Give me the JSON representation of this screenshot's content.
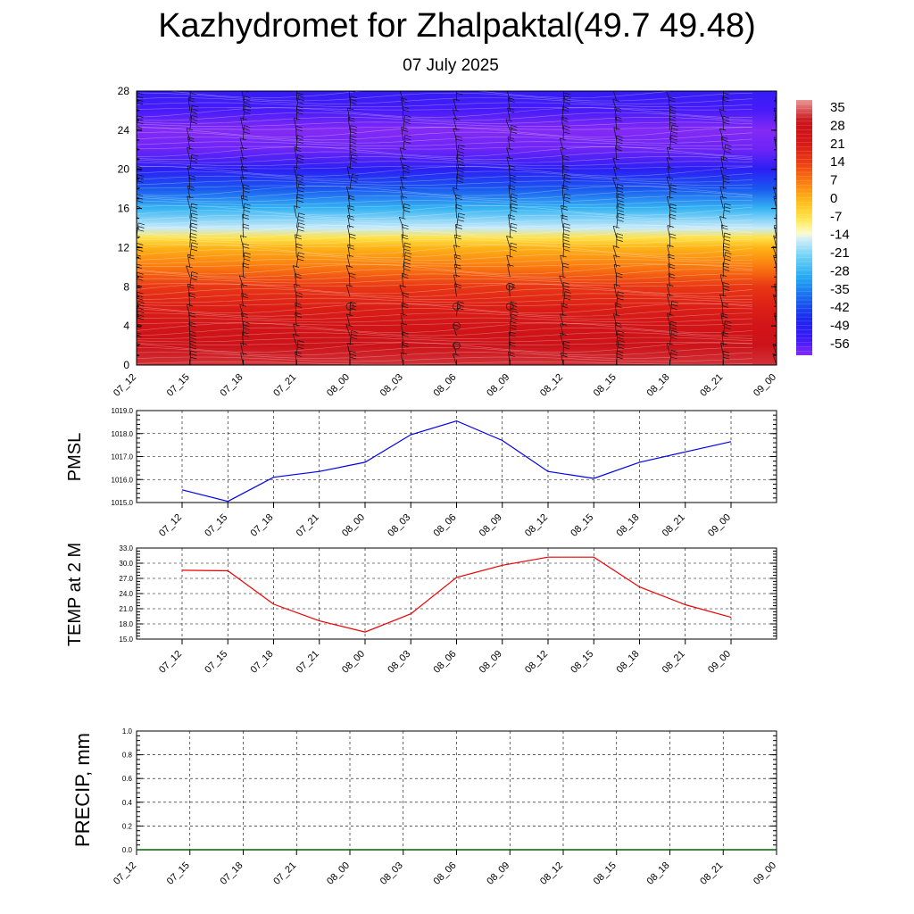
{
  "header": {
    "title": "Kazhydromet for Zhalpaktal(49.7 49.48)",
    "date": "07 July 2025"
  },
  "colors": {
    "pmsl_line": "#0000ee",
    "temp_line": "#ee0000",
    "precip_line": "#006400"
  },
  "chart_data": [
    {
      "type": "heatmap",
      "title": "",
      "time_labels": [
        "07_12",
        "07_15",
        "07_18",
        "07_21",
        "08_00",
        "08_03",
        "08_06",
        "08_09",
        "08_12",
        "08_15",
        "08_18",
        "08_21",
        "09_00"
      ],
      "y_ticks": [
        0,
        4,
        8,
        12,
        16,
        20,
        24,
        28
      ],
      "ylim": [
        0,
        28
      ],
      "colorbar_labels": [
        "35",
        "28",
        "21",
        "14",
        "7",
        "0",
        "-7",
        "-14",
        "-21",
        "-28",
        "-35",
        "-42",
        "-49",
        "-56"
      ],
      "colorbar_range": [
        -60,
        38
      ],
      "temperature_profile": {
        "levels": [
          0,
          2,
          4,
          6,
          8,
          10,
          12,
          13,
          14,
          16,
          18,
          20,
          22,
          24,
          26,
          28
        ],
        "values": [
          32,
          28,
          25,
          20,
          15,
          7,
          0,
          -7,
          -16,
          -28,
          -40,
          -50,
          -58,
          -60,
          -55,
          -52
        ]
      },
      "wind_barbs": true,
      "calm_markers": [
        {
          "time": "08_00",
          "level": 6
        },
        {
          "time": "08_06",
          "level": 6
        },
        {
          "time": "08_06",
          "level": 4
        },
        {
          "time": "08_06",
          "level": 2
        },
        {
          "time": "08_09",
          "level": 8
        },
        {
          "time": "08_09",
          "level": 6
        }
      ]
    },
    {
      "type": "line",
      "ylabel": "PMSL",
      "x": [
        "07_12",
        "07_15",
        "07_18",
        "07_21",
        "08_00",
        "08_03",
        "08_06",
        "08_09",
        "08_12",
        "08_15",
        "08_18",
        "08_21",
        "09_00"
      ],
      "y_ticks": [
        "1015.0",
        "1016.0",
        "1017.0",
        "1018.0",
        "1019.0"
      ],
      "ylim": [
        1015.0,
        1019.0
      ],
      "grid": true,
      "series": [
        {
          "values": [
            1015.55,
            1015.05,
            1016.1,
            1016.35,
            1016.75,
            1017.95,
            1018.55,
            1017.7,
            1016.35,
            1016.05,
            1016.75,
            1017.2,
            1017.65
          ]
        }
      ]
    },
    {
      "type": "line",
      "ylabel": "TEMP at 2 M",
      "x": [
        "07_12",
        "07_15",
        "07_18",
        "07_21",
        "08_00",
        "08_03",
        "08_06",
        "08_09",
        "08_12",
        "08_15",
        "08_18",
        "08_21",
        "09_00"
      ],
      "y_ticks": [
        "15.0",
        "18.0",
        "21.0",
        "24.0",
        "27.0",
        "30.0",
        "33.0"
      ],
      "ylim": [
        15.0,
        33.0
      ],
      "grid": true,
      "series": [
        {
          "values": [
            28.6,
            28.5,
            21.9,
            18.6,
            16.4,
            20.0,
            27.2,
            29.6,
            31.2,
            31.2,
            25.3,
            21.8,
            19.3
          ]
        }
      ]
    },
    {
      "type": "line",
      "ylabel": "PRECIP, mm",
      "x": [
        "07_12",
        "07_15",
        "07_18",
        "07_21",
        "08_00",
        "08_03",
        "08_06",
        "08_09",
        "08_12",
        "08_15",
        "08_18",
        "08_21",
        "09_00"
      ],
      "y_ticks": [
        "0.0",
        "0.2",
        "0.4",
        "0.6",
        "0.8",
        "1.0"
      ],
      "ylim": [
        0.0,
        1.0
      ],
      "grid": true,
      "series": [
        {
          "values": [
            0,
            0,
            0,
            0,
            0,
            0,
            0,
            0,
            0,
            0,
            0,
            0,
            0
          ]
        }
      ]
    }
  ]
}
